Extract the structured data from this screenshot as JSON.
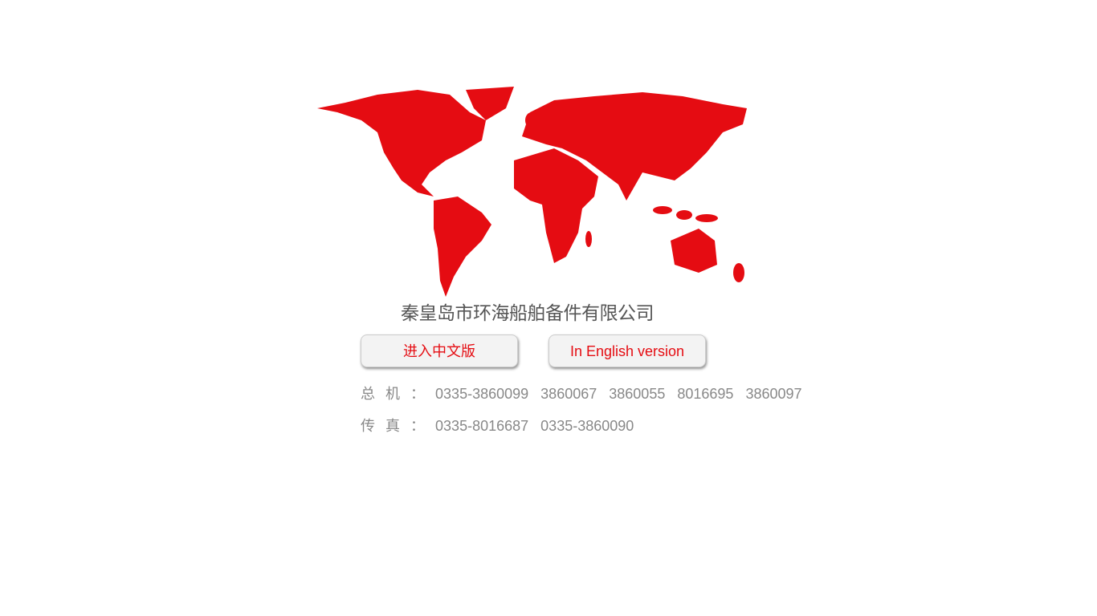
{
  "map": {
    "icon": "world-map",
    "color": "#e50c12"
  },
  "company_name": "秦皇岛市环海船舶备件有限公司",
  "buttons": {
    "chinese": "进入中文版",
    "english": "In English version"
  },
  "contacts": {
    "phone": {
      "label": "总 机 ：",
      "numbers": [
        "0335-3860099",
        "3860067",
        "3860055",
        "8016695",
        "3860097"
      ]
    },
    "fax": {
      "label": "传 真 ：",
      "numbers": [
        "0335-8016687",
        "0335-3860090"
      ]
    }
  }
}
